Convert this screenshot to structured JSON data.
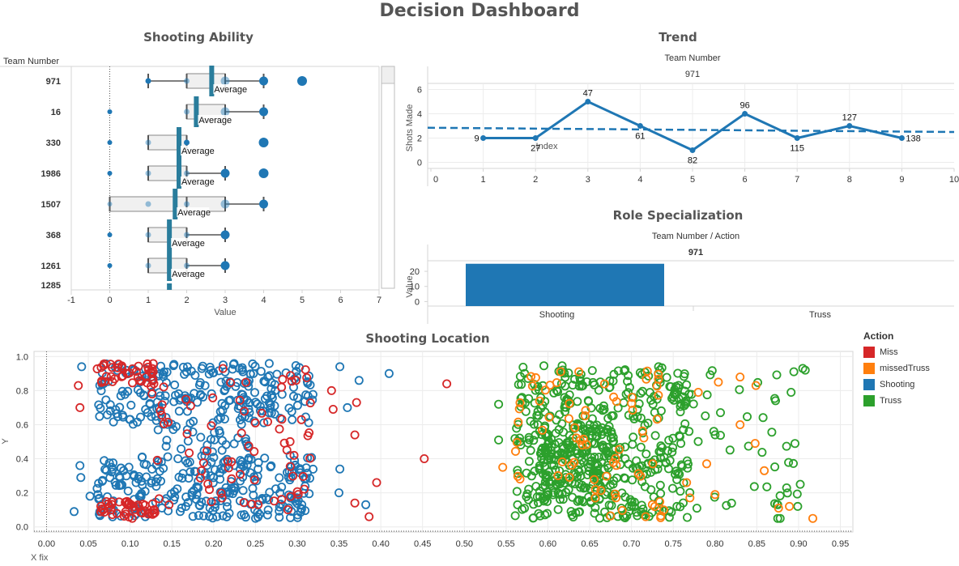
{
  "dashboard": {
    "title": "Decision Dashboard"
  },
  "colors": {
    "blue": "#1f77b4",
    "teal_avg": "#2a7d9c",
    "red": "#d62728",
    "orange": "#ff7f0e",
    "green": "#2ca02c",
    "grid": "#ececec",
    "frame": "#d4d4d4",
    "box_fill": "#f0f0f0"
  },
  "chart_data": [
    {
      "id": "shooting-ability",
      "type": "boxplot",
      "title": "Shooting Ability",
      "row_header": "Team Number",
      "xlabel": "Value",
      "xlim": [
        -1,
        7
      ],
      "xticks": [
        -1,
        0,
        1,
        2,
        3,
        4,
        5,
        6,
        7
      ],
      "reference_line_label": "Average",
      "rows": [
        {
          "team": "971",
          "whisker_low": 1,
          "q1": 2,
          "median": null,
          "q3": 3,
          "whisker_high": 4,
          "average": 2.65,
          "points": [
            1,
            2,
            3,
            4
          ],
          "outliers": [
            5
          ]
        },
        {
          "team": "16",
          "whisker_low": 2,
          "q1": 2,
          "median": null,
          "q3": 3,
          "whisker_high": 4,
          "average": 2.25,
          "points": [
            0,
            2,
            3,
            4
          ],
          "outliers": []
        },
        {
          "team": "330",
          "whisker_low": 1,
          "q1": 1,
          "median": null,
          "q3": 2,
          "whisker_high": 2,
          "average": 1.8,
          "points": [
            0,
            1,
            2
          ],
          "outliers": [
            4
          ]
        },
        {
          "team": "1986",
          "whisker_low": 1,
          "q1": 1,
          "median": null,
          "q3": 2,
          "whisker_high": 3,
          "average": 1.8,
          "points": [
            0,
            1,
            2,
            3
          ],
          "outliers": [
            4
          ]
        },
        {
          "team": "1507",
          "whisker_low": 0,
          "q1": 0,
          "median": 2,
          "q3": 3,
          "whisker_high": 4,
          "average": 1.7,
          "points": [
            0,
            1,
            2,
            3,
            4
          ],
          "outliers": []
        },
        {
          "team": "368",
          "whisker_low": 1,
          "q1": 1,
          "median": null,
          "q3": 2,
          "whisker_high": 3,
          "average": 1.55,
          "points": [
            0,
            1,
            2,
            3
          ],
          "outliers": []
        },
        {
          "team": "1261",
          "whisker_low": 1,
          "q1": 1,
          "median": null,
          "q3": 2,
          "whisker_high": 3,
          "average": 1.55,
          "points": [
            0,
            1,
            2,
            3
          ],
          "outliers": []
        },
        {
          "team": "1285",
          "partial": true,
          "average": 1.55
        }
      ]
    },
    {
      "id": "trend",
      "type": "line",
      "title": "Trend",
      "header": "Team Number",
      "pane_label": "971",
      "xlabel": "Index",
      "ylabel": "Shots Made",
      "xlim": [
        0,
        10
      ],
      "ylim": [
        -0.5,
        6.5
      ],
      "xticks": [
        0,
        1,
        2,
        3,
        4,
        5,
        6,
        7,
        8,
        9,
        10
      ],
      "yticks": [
        0,
        2,
        4,
        6
      ],
      "points": [
        {
          "x": 1,
          "y": 2,
          "label": "9"
        },
        {
          "x": 2,
          "y": 2,
          "label": "27"
        },
        {
          "x": 3,
          "y": 5,
          "label": "47"
        },
        {
          "x": 4,
          "y": 3,
          "label": "61"
        },
        {
          "x": 5,
          "y": 1,
          "label": "82"
        },
        {
          "x": 6,
          "y": 4,
          "label": "96"
        },
        {
          "x": 7,
          "y": 2,
          "label": "115"
        },
        {
          "x": 8,
          "y": 3,
          "label": "127"
        },
        {
          "x": 9,
          "y": 2,
          "label": "138"
        }
      ],
      "trend_line": {
        "x0": 0,
        "y0": 2.85,
        "x1": 10,
        "y1": 2.5,
        "style": "dashed"
      }
    },
    {
      "id": "role-specialization",
      "type": "bar",
      "title": "Role Specialization",
      "header": "Team Number  /  Action",
      "pane_label": "971",
      "ylabel": "Value",
      "ylim": [
        -3,
        27
      ],
      "yticks": [
        0,
        10,
        20
      ],
      "categories": [
        "Shooting",
        "Truss"
      ],
      "values": [
        25,
        0
      ]
    },
    {
      "id": "shooting-location",
      "type": "scatter",
      "title": "Shooting Location",
      "xlabel": "X fix",
      "ylabel": "Y",
      "xlim": [
        -0.015,
        0.965
      ],
      "ylim": [
        -0.03,
        1.03
      ],
      "xticks": [
        "0.00",
        "0.05",
        "0.10",
        "0.15",
        "0.20",
        "0.25",
        "0.30",
        "0.35",
        "0.40",
        "0.45",
        "0.50",
        "0.55",
        "0.60",
        "0.65",
        "0.70",
        "0.75",
        "0.80",
        "0.85",
        "0.90",
        "0.95"
      ],
      "yticks": [
        "0.0",
        "0.2",
        "0.4",
        "0.6",
        "0.8",
        "1.0"
      ],
      "legend": {
        "title": "Action",
        "items": [
          {
            "label": "Miss",
            "color": "#d62728"
          },
          {
            "label": "missedTruss",
            "color": "#ff7f0e"
          },
          {
            "label": "Shooting",
            "color": "#1f77b4"
          },
          {
            "label": "Truss",
            "color": "#2ca02c"
          }
        ]
      },
      "series": [
        {
          "name": "Shooting",
          "color": "#1f77b4",
          "approx_count": 520,
          "clusters": [
            {
              "x": [
                0.06,
                0.32
              ],
              "y": [
                0.6,
                0.96
              ],
              "n": 230
            },
            {
              "x": [
                0.06,
                0.32
              ],
              "y": [
                0.05,
                0.42
              ],
              "n": 260
            },
            {
              "x": [
                0.13,
                0.25
              ],
              "y": [
                0.4,
                0.6
              ],
              "n": 30
            }
          ],
          "extra_points": [
            [
              0.033,
              0.09
            ],
            [
              0.042,
              0.94
            ],
            [
              0.04,
              0.36
            ],
            [
              0.041,
              0.29
            ],
            [
              0.052,
              0.18
            ],
            [
              0.351,
              0.94
            ],
            [
              0.374,
              0.86
            ],
            [
              0.41,
              0.9
            ],
            [
              0.36,
              0.7
            ],
            [
              0.382,
              0.13
            ],
            [
              0.351,
              0.34
            ],
            [
              0.35,
              0.2
            ]
          ]
        },
        {
          "name": "Miss",
          "color": "#d62728",
          "approx_count": 170,
          "clusters": [
            {
              "x": [
                0.06,
                0.13
              ],
              "y": [
                0.84,
                0.96
              ],
              "n": 40
            },
            {
              "x": [
                0.06,
                0.13
              ],
              "y": [
                0.05,
                0.15
              ],
              "n": 45
            },
            {
              "x": [
                0.12,
                0.32
              ],
              "y": [
                0.05,
                0.95
              ],
              "n": 75
            }
          ],
          "extra_points": [
            [
              0.038,
              0.83
            ],
            [
              0.04,
              0.7
            ],
            [
              0.452,
              0.4
            ],
            [
              0.479,
              0.84
            ],
            [
              0.395,
              0.26
            ],
            [
              0.369,
              0.54
            ],
            [
              0.371,
              0.73
            ],
            [
              0.343,
              0.69
            ],
            [
              0.341,
              0.8
            ],
            [
              0.386,
              0.06
            ],
            [
              0.369,
              0.14
            ]
          ]
        },
        {
          "name": "Truss",
          "color": "#2ca02c",
          "approx_count": 620,
          "clusters": [
            {
              "x": [
                0.56,
                0.77
              ],
              "y": [
                0.05,
                0.95
              ],
              "n": 420
            },
            {
              "x": [
                0.59,
                0.68
              ],
              "y": [
                0.15,
                0.6
              ],
              "n": 160
            },
            {
              "x": [
                0.77,
                0.9
              ],
              "y": [
                0.1,
                0.95
              ],
              "n": 40
            }
          ],
          "extra_points": [
            [
              0.541,
              0.72
            ],
            [
              0.541,
              0.51
            ],
            [
              0.875,
              0.05
            ],
            [
              0.878,
              0.05
            ],
            [
              0.875,
              0.13
            ],
            [
              0.905,
              0.93
            ],
            [
              0.908,
              0.92
            ],
            [
              0.891,
              0.79
            ],
            [
              0.902,
              0.25
            ],
            [
              0.899,
              0.12
            ]
          ]
        },
        {
          "name": "missedTruss",
          "color": "#ff7f0e",
          "approx_count": 90,
          "clusters": [
            {
              "x": [
                0.56,
                0.74
              ],
              "y": [
                0.05,
                0.95
              ],
              "n": 70
            }
          ],
          "extra_points": [
            [
              0.546,
              0.35
            ],
            [
              0.917,
              0.05
            ],
            [
              0.889,
              0.12
            ],
            [
              0.876,
              0.11
            ],
            [
              0.859,
              0.33
            ],
            [
              0.848,
              0.49
            ],
            [
              0.849,
              0.83
            ],
            [
              0.83,
              0.6
            ],
            [
              0.83,
              0.88
            ],
            [
              0.804,
              0.85
            ],
            [
              0.78,
              0.79
            ],
            [
              0.79,
              0.37
            ],
            [
              0.8,
              0.19
            ],
            [
              0.77,
              0.17
            ],
            [
              0.766,
              0.26
            ],
            [
              0.717,
              0.06
            ]
          ]
        }
      ]
    }
  ]
}
